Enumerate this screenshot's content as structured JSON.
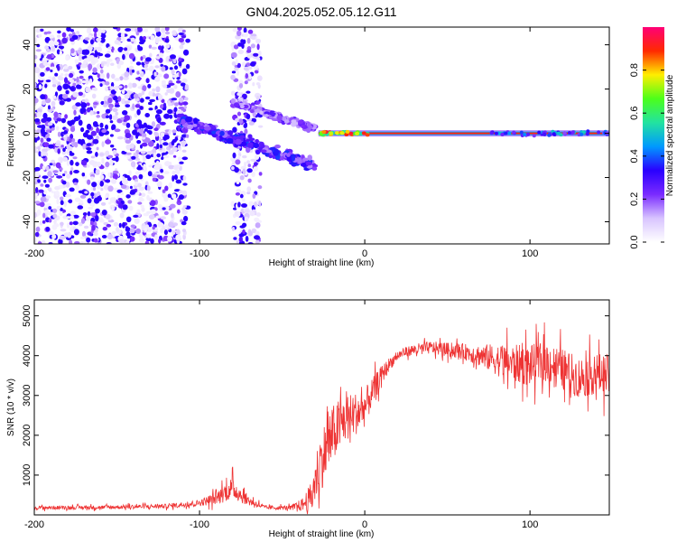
{
  "title": "GN04.2025.052.05.12.G11",
  "colors": {
    "line": "#ee3333",
    "frame": "#000000",
    "cbar_stops": [
      "#ffffff",
      "#d8c4ff",
      "#7a2bff",
      "#2a00ff",
      "#0099ff",
      "#22e3a0",
      "#4cff1a",
      "#ffee00",
      "#ff2a00",
      "#ff0077"
    ]
  },
  "chart_data": [
    {
      "type": "heatmap",
      "title": "",
      "xlabel": "Height of straight line (km)",
      "ylabel": "Frequency (Hz)",
      "xlim": [
        -200,
        148
      ],
      "ylim": [
        -50,
        48
      ],
      "xticks": [
        -200,
        -100,
        0,
        100
      ],
      "yticks": [
        -40,
        -20,
        0,
        20,
        40
      ],
      "colorbar": {
        "label": "Normalized spectral amplitude",
        "range": [
          0,
          1
        ],
        "ticks": [
          "0.0",
          "0.2",
          "0.4",
          "0.6",
          "0.8"
        ],
        "tick_values": [
          0.0,
          0.2,
          0.4,
          0.6,
          0.8
        ]
      },
      "features": [
        {
          "name": "noise-cloud-left",
          "x_range": [
            -200,
            -107
          ],
          "freq_range": [
            -50,
            48
          ],
          "amplitude": 0.12
        },
        {
          "name": "noise-cloud-mid",
          "x_range": [
            -80,
            -63
          ],
          "freq_range": [
            -50,
            48
          ],
          "amplitude": 0.1
        },
        {
          "name": "upper-track",
          "x_start": -80,
          "x_end": -30,
          "f_start": 14,
          "f_end": 2,
          "amplitude": 0.22
        },
        {
          "name": "lower-track",
          "x_start": -112,
          "x_end": -30,
          "f_start": 6,
          "f_end": -15,
          "amplitude": 0.3
        },
        {
          "name": "zero-line",
          "x_start": -28,
          "x_end": 148,
          "f": 0,
          "amplitude": 0.9
        }
      ]
    },
    {
      "type": "line",
      "title": "",
      "xlabel": "Height of straight line (km)",
      "ylabel": "SNR (10 * v/v)",
      "xlim": [
        -200,
        148
      ],
      "ylim": [
        0,
        5400
      ],
      "xticks": [
        -200,
        -100,
        0,
        100
      ],
      "yticks": [
        1000,
        2000,
        3000,
        4000,
        5000
      ],
      "series": [
        {
          "name": "SNR",
          "x": [
            -200,
            -160,
            -120,
            -100,
            -90,
            -85,
            -80,
            -75,
            -70,
            -60,
            -45,
            -38,
            -32,
            -28,
            -22,
            -18,
            -12,
            -8,
            -3,
            0,
            5,
            10,
            15,
            20,
            25,
            30,
            40,
            50,
            60,
            70,
            80,
            90,
            100,
            110,
            120,
            130,
            140,
            148
          ],
          "y": [
            180,
            190,
            220,
            300,
            420,
            560,
            680,
            500,
            350,
            180,
            180,
            250,
            450,
            1200,
            1800,
            2100,
            2400,
            2500,
            2600,
            2700,
            3100,
            3500,
            3800,
            4000,
            4100,
            4150,
            4200,
            4150,
            4100,
            4000,
            3900,
            3800,
            3750,
            3850,
            3650,
            3450,
            3550,
            3500
          ],
          "noise": [
            60,
            60,
            70,
            100,
            200,
            300,
            350,
            250,
            150,
            60,
            70,
            200,
            500,
            900,
            1000,
            900,
            800,
            700,
            650,
            600,
            450,
            300,
            200,
            150,
            150,
            180,
            200,
            220,
            250,
            350,
            500,
            600,
            650,
            650,
            650,
            650,
            650,
            650
          ]
        }
      ]
    }
  ]
}
